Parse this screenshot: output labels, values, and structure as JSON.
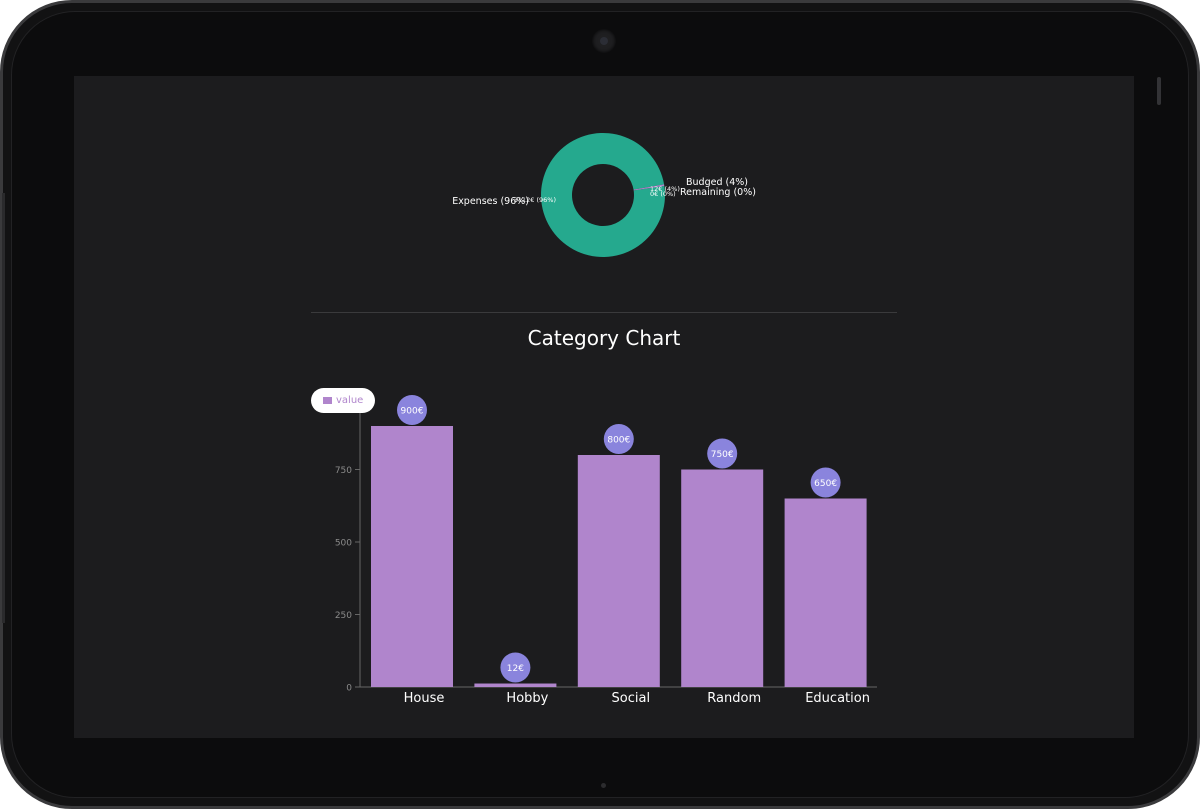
{
  "colors": {
    "expenses": "#25a98e",
    "budgeted": "#b085cc",
    "remaining": "#8a8fd8",
    "bar": "#b085cc",
    "value_badge": "#8a84dd",
    "axis": "#666666",
    "tick_text": "#8a8a8a",
    "screen_bg": "#1c1c1e"
  },
  "chart_data": [
    {
      "type": "pie",
      "variant": "donut",
      "slices": [
        {
          "label": "Expenses (96%)",
          "inner_label": "3112€ (96%)",
          "value": 3112,
          "percent": 96,
          "color": "#25a98e"
        },
        {
          "label": "Budged (4%)",
          "inner_label": "12€ (4%)",
          "value": 12,
          "percent": 4,
          "color": "#b085cc"
        },
        {
          "label": "Remaining (0%)",
          "inner_label": "0€ (0%)",
          "value": 0,
          "percent": 0,
          "color": "#8a8fd8"
        }
      ]
    },
    {
      "type": "bar",
      "title": "Category Chart",
      "legend": {
        "entries": [
          "value"
        ],
        "placement": "top-left"
      },
      "categories": [
        "House",
        "Hobby",
        "Social",
        "Random",
        "Education"
      ],
      "series": [
        {
          "name": "value",
          "values": [
            900,
            12,
            800,
            750,
            650
          ]
        }
      ],
      "data_labels": [
        "900€",
        "12€",
        "800€",
        "750€",
        "650€"
      ],
      "y_ticks": [
        "0",
        "250",
        "500",
        "750"
      ],
      "ylim": [
        0,
        900
      ],
      "grid": false
    }
  ]
}
